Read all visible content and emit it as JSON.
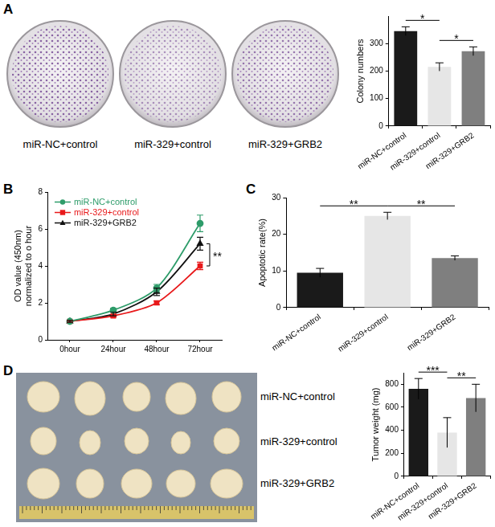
{
  "panels": [
    "A",
    "B",
    "C",
    "D"
  ],
  "colony_plates": {
    "labels": [
      "miR-NC+control",
      "miR-329+control",
      "miR-329+GRB2"
    ]
  },
  "tumor_photo": {
    "row_labels": [
      "miR-NC+control",
      "miR-329+control",
      "miR-329+GRB2"
    ]
  },
  "chart_data": [
    {
      "type": "bar",
      "panel": "A",
      "categories": [
        "miR-NC+control",
        "miR-329+control",
        "miR-329+GRB2"
      ],
      "values": [
        345,
        215,
        272
      ],
      "errors": [
        16,
        15,
        16
      ],
      "colors": [
        "#1a1a1a",
        "#e6e6e6",
        "#7f7f7f"
      ],
      "ylabel": "Colony numbers",
      "ylim": [
        0,
        400
      ],
      "yticks": [
        0,
        100,
        200,
        300
      ],
      "grid": false,
      "annotations": [
        {
          "between": [
            "miR-NC+control",
            "miR-329+control"
          ],
          "label": "*"
        },
        {
          "between": [
            "miR-329+control",
            "miR-329+GRB2"
          ],
          "label": "*"
        }
      ]
    },
    {
      "type": "line",
      "panel": "B",
      "categories": [
        "0hour",
        "24hour",
        "48hour",
        "72hour"
      ],
      "series": [
        {
          "name": "miR-NC+control",
          "color": "#2e9c6a",
          "marker": "circle",
          "values": [
            1,
            1.6,
            2.8,
            6.3
          ],
          "errors": [
            0.05,
            0.1,
            0.2,
            0.45
          ]
        },
        {
          "name": "miR-329+control",
          "color": "#e8191b",
          "marker": "square",
          "values": [
            1,
            1.3,
            2.0,
            4.0
          ],
          "errors": [
            0.05,
            0.08,
            0.1,
            0.2
          ]
        },
        {
          "name": "miR-329+GRB2",
          "color": "#111111",
          "marker": "triangle",
          "values": [
            1,
            1.4,
            2.6,
            5.2
          ],
          "errors": [
            0.05,
            0.1,
            0.2,
            0.35
          ]
        }
      ],
      "ylabel": [
        "OD value (450nm)",
        "normalized to o hour"
      ],
      "ylim": [
        0,
        8
      ],
      "yticks": [
        0,
        2,
        4,
        6,
        8
      ],
      "grid": false,
      "legend": "upper left",
      "annotations": [
        {
          "between": [
            "miR-329+control",
            "miR-329+GRB2"
          ],
          "at": "72hour",
          "label": "**"
        }
      ]
    },
    {
      "type": "bar",
      "panel": "C",
      "categories": [
        "miR-NC+control",
        "miR-329+control",
        "miR-329+GRB2"
      ],
      "values": [
        9.5,
        25,
        13.5
      ],
      "errors": [
        1.2,
        1.0,
        0.6
      ],
      "colors": [
        "#1a1a1a",
        "#e6e6e6",
        "#7f7f7f"
      ],
      "ylabel": "Apoptotic rate(%)",
      "ylim": [
        0,
        30
      ],
      "yticks": [
        0,
        10,
        20,
        30
      ],
      "grid": false,
      "annotations": [
        {
          "between": [
            "miR-NC+control",
            "miR-329+control"
          ],
          "label": "**"
        },
        {
          "between": [
            "miR-329+control",
            "miR-329+GRB2"
          ],
          "label": "**"
        }
      ]
    },
    {
      "type": "bar",
      "panel": "D",
      "categories": [
        "miR-NC+control",
        "miR-329+control",
        "miR-329+GRB2"
      ],
      "values": [
        760,
        380,
        680
      ],
      "errors": [
        90,
        130,
        120
      ],
      "colors": [
        "#1a1a1a",
        "#e6e6e6",
        "#7f7f7f"
      ],
      "ylabel": "Tumor weight (mg)",
      "ylim": [
        0,
        900
      ],
      "yticks": [
        0,
        200,
        400,
        600,
        800
      ],
      "grid": false,
      "annotations": [
        {
          "between": [
            "miR-NC+control",
            "miR-329+control"
          ],
          "label": "***"
        },
        {
          "between": [
            "miR-329+control",
            "miR-329+GRB2"
          ],
          "label": "**"
        }
      ]
    }
  ]
}
